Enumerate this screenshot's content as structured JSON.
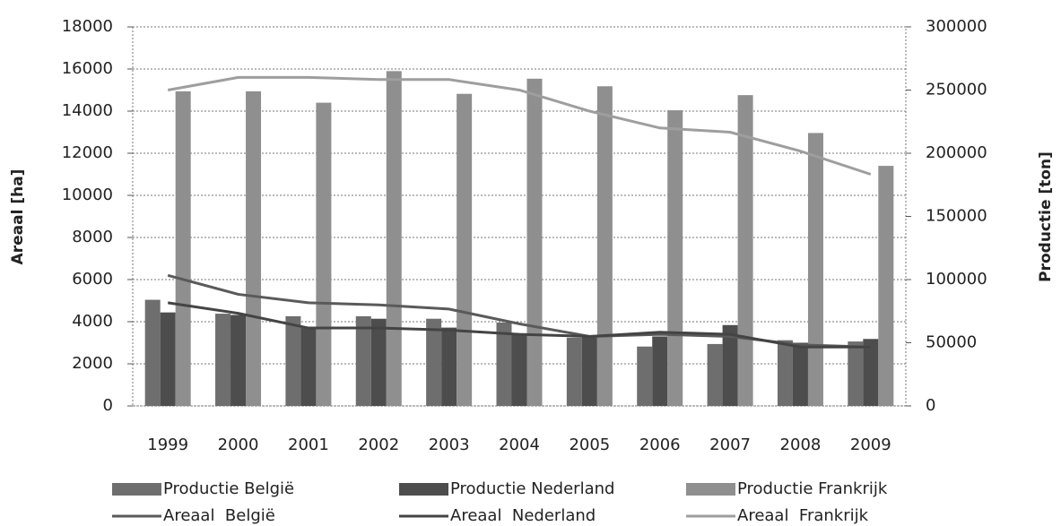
{
  "chart_data": {
    "type": "combo",
    "y_label": "Areaal [ha]",
    "y2_label": "Productie [ton]",
    "categories": [
      "1999",
      "2000",
      "2001",
      "2002",
      "2003",
      "2004",
      "2005",
      "2006",
      "2007",
      "2008",
      "2009"
    ],
    "ylim": [
      0,
      18000
    ],
    "yticks": [
      0,
      2000,
      4000,
      6000,
      8000,
      10000,
      12000,
      14000,
      16000,
      18000
    ],
    "y2lim": [
      0,
      300000
    ],
    "y2ticks": [
      0,
      50000,
      100000,
      150000,
      200000,
      250000,
      300000
    ],
    "grid": true,
    "legend": "bottom",
    "series": [
      {
        "name": "Productie België",
        "type": "bar",
        "axis": "y2",
        "color": "#6e6e6e",
        "values": [
          84000,
          73000,
          71000,
          71000,
          69000,
          66000,
          54000,
          47000,
          49000,
          52000,
          51000
        ]
      },
      {
        "name": "Productie Nederland",
        "type": "bar",
        "axis": "y2",
        "color": "#4d4d4d",
        "values": [
          74000,
          72000,
          62000,
          69000,
          62000,
          57000,
          55000,
          55000,
          64000,
          50000,
          53000
        ]
      },
      {
        "name": "Productie Frankrijk",
        "type": "bar",
        "axis": "y2",
        "color": "#8f8f8f",
        "values": [
          249000,
          249000,
          240000,
          265000,
          247000,
          259000,
          253000,
          234000,
          246000,
          216000,
          190000
        ]
      },
      {
        "name": "Areaal  België",
        "type": "line",
        "color": "#5a5a5a",
        "values": [
          6200,
          5300,
          4900,
          4800,
          4600,
          3900,
          3300,
          3400,
          3300,
          2900,
          2800
        ]
      },
      {
        "name": "Areaal  Nederland",
        "type": "line",
        "color": "#444444",
        "values": [
          4900,
          4400,
          3700,
          3700,
          3600,
          3400,
          3300,
          3500,
          3400,
          2800,
          2800
        ]
      },
      {
        "name": "Areaal  Frankrijk",
        "type": "line",
        "color": "#9e9e9e",
        "values": [
          15000,
          15600,
          15600,
          15500,
          15500,
          15000,
          14000,
          13200,
          13000,
          12100,
          11000
        ]
      }
    ]
  }
}
